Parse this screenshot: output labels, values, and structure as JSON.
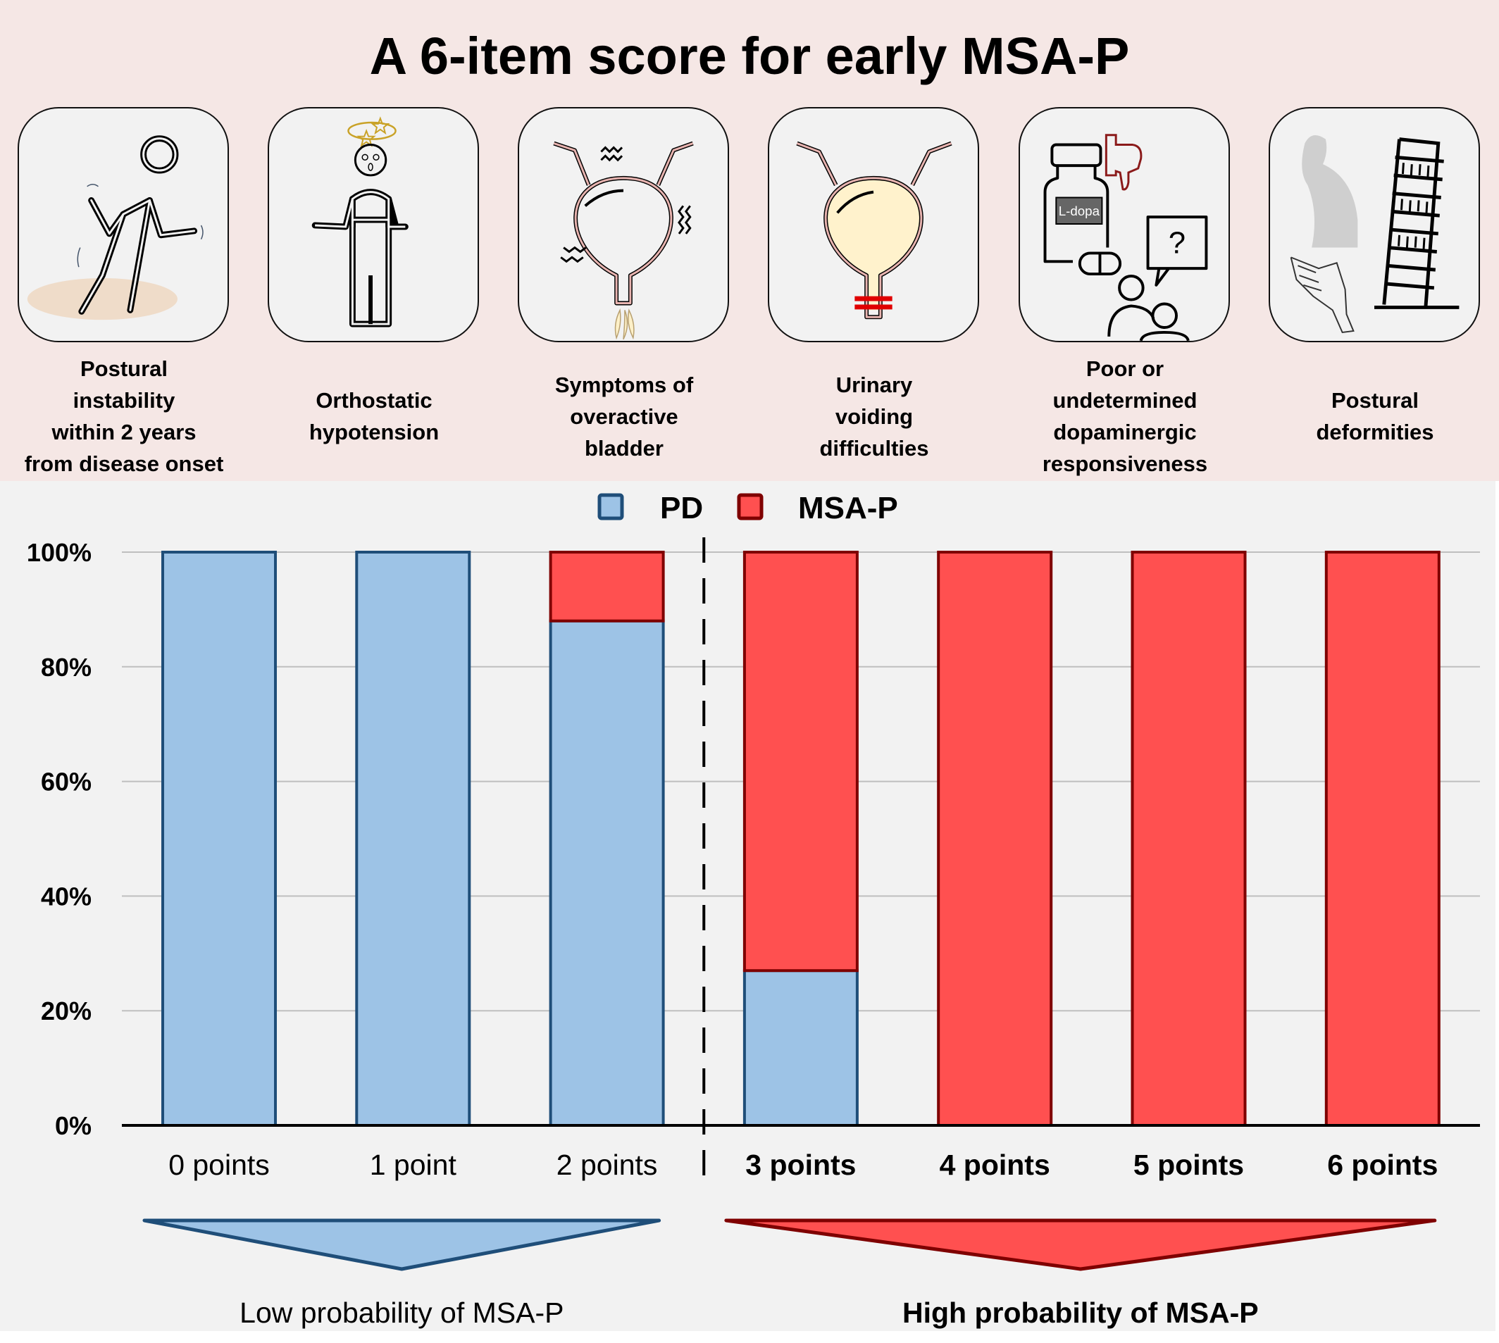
{
  "title": "A 6-item score for early MSA-P",
  "criteria": [
    {
      "icon": "falling-person-icon",
      "label_lines": [
        "Postural",
        "instability",
        "within 2 years",
        "from disease onset"
      ]
    },
    {
      "icon": "dizzy-person-icon",
      "label_lines": [
        "Orthostatic",
        "hypotension"
      ]
    },
    {
      "icon": "overactive-bladder-icon",
      "label_lines": [
        "Symptoms of",
        "overactive",
        "bladder"
      ]
    },
    {
      "icon": "blocked-bladder-icon",
      "label_lines": [
        "Urinary",
        "voiding",
        "difficulties"
      ]
    },
    {
      "icon": "ldopa-thumbs-down-icon",
      "label_lines": [
        "Poor or",
        "undetermined",
        "dopaminergic",
        "responsiveness"
      ],
      "bottle_label": "L-dopa",
      "speech_mark": "?"
    },
    {
      "icon": "leaning-tower-posture-icon",
      "label_lines": [
        "Postural",
        "deformities"
      ]
    }
  ],
  "colors": {
    "pd_fill": "#9DC3E6",
    "pd_border": "#1F4E79",
    "msa_fill": "#FF5050",
    "msa_border": "#7F0000",
    "background": "#F2F2F2",
    "header_bg": "#F5E7E5"
  },
  "chart_data": {
    "type": "bar",
    "stacked": true,
    "normalized": true,
    "title": "",
    "xlabel": "",
    "ylabel": "",
    "categories": [
      "0 points",
      "1 point",
      "2 points",
      "3 points",
      "4 points",
      "5 points",
      "6 points"
    ],
    "category_bold": [
      false,
      false,
      false,
      true,
      true,
      true,
      true
    ],
    "series": [
      {
        "name": "PD",
        "values": [
          100,
          100,
          88,
          27,
          0,
          0,
          0
        ]
      },
      {
        "name": "MSA-P",
        "values": [
          0,
          0,
          12,
          73,
          100,
          100,
          100
        ]
      }
    ],
    "ylim": [
      0,
      100
    ],
    "yticks": [
      0,
      20,
      40,
      60,
      80,
      100
    ],
    "ytick_labels": [
      "0%",
      "20%",
      "40%",
      "60%",
      "80%",
      "100%"
    ],
    "grid": true,
    "legend": {
      "placement": "top-center",
      "entries": [
        "PD",
        "MSA-P"
      ]
    },
    "cutoff_between": [
      "2 points",
      "3 points"
    ],
    "annotations": [
      {
        "text": "Low probability of MSA-P",
        "spans": [
          "0 points",
          "2 points"
        ],
        "color": "PD",
        "bold": false
      },
      {
        "text": "High probability of MSA-P",
        "spans": [
          "3 points",
          "6 points"
        ],
        "color": "MSA-P",
        "bold": true
      }
    ]
  }
}
